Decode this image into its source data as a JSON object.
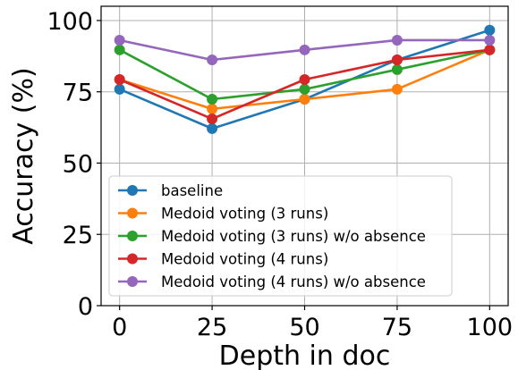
{
  "chart_data": {
    "type": "line",
    "title": "",
    "xlabel": "Depth in doc",
    "ylabel": "Accuracy (%)",
    "x": [
      0,
      25,
      50,
      75,
      100
    ],
    "xlim": [
      -5,
      105
    ],
    "ylim": [
      0,
      105
    ],
    "xticks": [
      "0",
      "25",
      "50",
      "75",
      "100"
    ],
    "yticks": [
      "0",
      "25",
      "50",
      "75",
      "100"
    ],
    "grid": true,
    "legend_position": "lower-left",
    "series": [
      {
        "name": "baseline",
        "color": "#1f77b4",
        "values": [
          75.9,
          62.1,
          72.4,
          86.2,
          96.6
        ]
      },
      {
        "name": "Medoid voting (3 runs)",
        "color": "#ff7f0e",
        "values": [
          79.3,
          69.0,
          72.4,
          75.9,
          89.7
        ]
      },
      {
        "name": "Medoid voting (3 runs) w/o absence",
        "color": "#2ca02c",
        "values": [
          89.7,
          72.4,
          75.9,
          82.8,
          89.7
        ]
      },
      {
        "name": "Medoid voting (4 runs)",
        "color": "#d62728",
        "values": [
          79.3,
          65.5,
          79.3,
          86.2,
          89.7
        ]
      },
      {
        "name": "Medoid voting (4 runs) w/o absence",
        "color": "#9467bd",
        "values": [
          93.1,
          86.2,
          89.7,
          93.1,
          93.1
        ]
      }
    ]
  }
}
